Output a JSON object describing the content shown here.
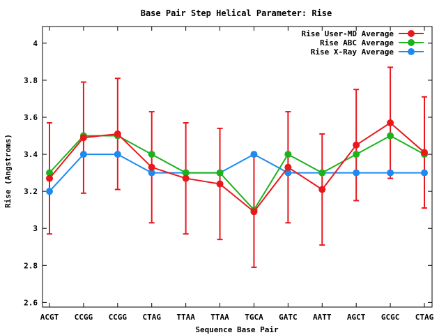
{
  "chart_data": {
    "type": "line",
    "title": "Base Pair Step Helical Parameter: Rise",
    "xlabel": "Sequence Base Pair",
    "ylabel": "Rise (Angstroms)",
    "categories": [
      "ACGT",
      "CCGG",
      "CCGG",
      "CTAG",
      "TTAA",
      "TTAA",
      "TGCA",
      "GATC",
      "AATT",
      "AGCT",
      "GCGC",
      "CTAG"
    ],
    "ylim": [
      2.575,
      4.09
    ],
    "yticks": [
      2.6,
      2.8,
      3,
      3.2,
      3.4,
      3.6,
      3.8,
      4
    ],
    "ytick_labels": [
      "2.6",
      "2.8",
      "3",
      "3.2",
      "3.4",
      "3.6",
      "3.8",
      "4"
    ],
    "legend_position": "top-right",
    "grid": false,
    "series": [
      {
        "name": "Rise User-MD Average",
        "color": "#e8181d",
        "values": [
          3.27,
          3.49,
          3.51,
          3.33,
          3.27,
          3.24,
          3.09,
          3.33,
          3.21,
          3.45,
          3.57,
          3.41
        ],
        "error": [
          0.3,
          0.3,
          0.3,
          0.3,
          0.3,
          0.3,
          0.3,
          0.3,
          0.3,
          0.3,
          0.3,
          0.3
        ]
      },
      {
        "name": "Rise ABC Average",
        "color": "#1cb21c",
        "values": [
          3.3,
          3.5,
          3.5,
          3.4,
          3.3,
          3.3,
          3.1,
          3.4,
          3.3,
          3.4,
          3.5,
          3.4
        ]
      },
      {
        "name": "Rise X-Ray Average",
        "color": "#1c8af0",
        "values": [
          3.2,
          3.4,
          3.4,
          3.3,
          3.3,
          3.3,
          3.4,
          3.3,
          3.3,
          3.3,
          3.3,
          3.3
        ]
      }
    ]
  }
}
